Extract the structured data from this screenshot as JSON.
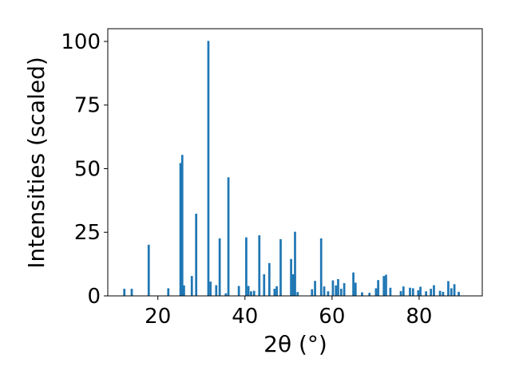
{
  "chart_data": {
    "type": "bar",
    "title": "",
    "xlabel": "2θ (°)",
    "ylabel": "Intensities (scaled)",
    "xlim": [
      8.5,
      94.5
    ],
    "ylim": [
      0,
      105
    ],
    "xticks": [
      20,
      40,
      60,
      80
    ],
    "yticks": [
      0,
      25,
      50,
      75,
      100
    ],
    "grid": false,
    "legend": "none",
    "bar_width": 0.5,
    "colors": {
      "bar": "#1f77b4",
      "axes": "#000000",
      "background": "#ffffff"
    },
    "x": [
      12.3,
      14.0,
      17.9,
      22.4,
      25.2,
      25.6,
      26.0,
      27.8,
      28.8,
      31.6,
      32.1,
      33.4,
      34.2,
      35.6,
      36.2,
      38.6,
      40.3,
      40.8,
      41.4,
      42.1,
      43.3,
      44.4,
      45.6,
      46.8,
      47.3,
      48.2,
      50.6,
      51.1,
      51.5,
      52.1,
      55.4,
      56.1,
      57.5,
      58.2,
      59.1,
      60.2,
      60.9,
      61.4,
      62.1,
      62.8,
      64.9,
      65.4,
      66.9,
      68.6,
      70.1,
      70.6,
      71.9,
      72.4,
      73.4,
      75.8,
      76.4,
      77.9,
      78.6,
      79.8,
      80.3,
      81.6,
      82.7,
      83.4,
      84.8,
      85.5,
      86.7,
      87.4,
      88.1,
      89.1
    ],
    "values": [
      2.8,
      2.8,
      20.1,
      3.0,
      52.2,
      55.4,
      4.1,
      7.8,
      32.3,
      100.2,
      5.6,
      4.2,
      22.6,
      1.0,
      46.6,
      3.9,
      23.0,
      3.9,
      1.8,
      2.0,
      23.8,
      8.5,
      12.9,
      2.8,
      3.8,
      22.3,
      14.5,
      8.5,
      25.2,
      1.5,
      2.6,
      5.9,
      22.6,
      3.7,
      1.8,
      6.1,
      4.1,
      6.6,
      2.8,
      5.0,
      9.2,
      5.2,
      1.4,
      1.2,
      3.0,
      6.2,
      7.8,
      8.3,
      3.2,
      1.9,
      3.7,
      3.2,
      3.0,
      2.2,
      3.6,
      1.8,
      2.8,
      4.2,
      2.0,
      1.6,
      5.8,
      3.0,
      4.6,
      1.6
    ]
  }
}
